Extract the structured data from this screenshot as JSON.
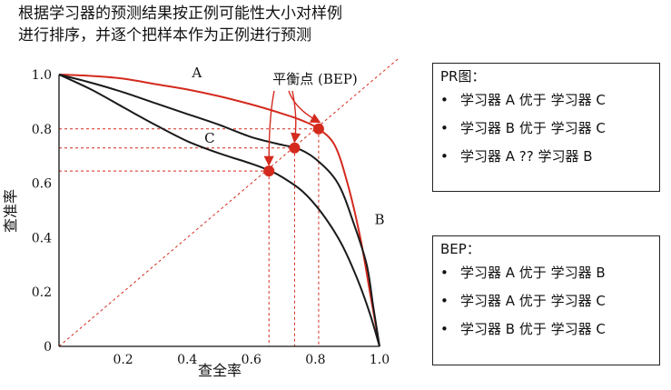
{
  "heading": {
    "line1": "根据学习器的预测结果按正例可能性大小对样例",
    "line2": "进行排序，并逐个把样本作为正例进行预测"
  },
  "chart_data": {
    "type": "line",
    "xlabel": "查全率",
    "ylabel": "查准率",
    "xlim": [
      0,
      1
    ],
    "ylim": [
      0,
      1
    ],
    "x_ticks": [
      "0",
      "0.2",
      "0.4",
      "0.6",
      "0.8",
      "1.0"
    ],
    "y_ticks": [
      "0",
      "0.2",
      "0.4",
      "0.6",
      "0.8",
      "1.0"
    ],
    "annotation": "平衡点 (BEP)",
    "series": [
      {
        "name": "A",
        "color": "#d42a1e",
        "points": [
          [
            0,
            1.0
          ],
          [
            0.1,
            0.995
          ],
          [
            0.2,
            0.985
          ],
          [
            0.3,
            0.965
          ],
          [
            0.4,
            0.945
          ],
          [
            0.5,
            0.92
          ],
          [
            0.6,
            0.89
          ],
          [
            0.7,
            0.855
          ],
          [
            0.76,
            0.83
          ],
          [
            0.81,
            0.8
          ],
          [
            0.86,
            0.74
          ],
          [
            0.9,
            0.6
          ],
          [
            0.94,
            0.4
          ],
          [
            0.97,
            0.2
          ],
          [
            1.0,
            0.0
          ]
        ]
      },
      {
        "name": "B",
        "color": "#1a1a1a",
        "points": [
          [
            0,
            1.0
          ],
          [
            0.1,
            0.97
          ],
          [
            0.2,
            0.935
          ],
          [
            0.3,
            0.895
          ],
          [
            0.4,
            0.855
          ],
          [
            0.5,
            0.815
          ],
          [
            0.6,
            0.77
          ],
          [
            0.7,
            0.74
          ],
          [
            0.74,
            0.73
          ],
          [
            0.8,
            0.69
          ],
          [
            0.87,
            0.6
          ],
          [
            0.92,
            0.45
          ],
          [
            0.96,
            0.3
          ],
          [
            0.98,
            0.15
          ],
          [
            1.0,
            0.0
          ]
        ]
      },
      {
        "name": "C",
        "color": "#1a1a1a",
        "points": [
          [
            0,
            1.0
          ],
          [
            0.1,
            0.945
          ],
          [
            0.2,
            0.88
          ],
          [
            0.3,
            0.815
          ],
          [
            0.4,
            0.755
          ],
          [
            0.5,
            0.71
          ],
          [
            0.6,
            0.672
          ],
          [
            0.66,
            0.645
          ],
          [
            0.7,
            0.62
          ],
          [
            0.76,
            0.57
          ],
          [
            0.82,
            0.49
          ],
          [
            0.88,
            0.38
          ],
          [
            0.93,
            0.25
          ],
          [
            0.97,
            0.12
          ],
          [
            1.0,
            0.0
          ]
        ]
      }
    ],
    "bep_points": [
      {
        "series": "A",
        "x": 0.81,
        "y": 0.8
      },
      {
        "series": "B",
        "x": 0.735,
        "y": 0.73
      },
      {
        "series": "C",
        "x": 0.655,
        "y": 0.645
      }
    ],
    "grid": false,
    "colors": {
      "red": "#d42a1e",
      "black": "#1a1a1a"
    }
  },
  "pr_box": {
    "title": "PR图：",
    "items": [
      "学习器 A 优于 学习器 C",
      "学习器 B 优于 学习器 C",
      "学习器 A ?? 学习器 B"
    ]
  },
  "bep_box": {
    "title": "BEP：",
    "items": [
      "学习器 A 优于 学习器 B",
      "学习器 A 优于 学习器 C",
      "学习器 B 优于 学习器 C"
    ]
  },
  "bullet_char": "•"
}
